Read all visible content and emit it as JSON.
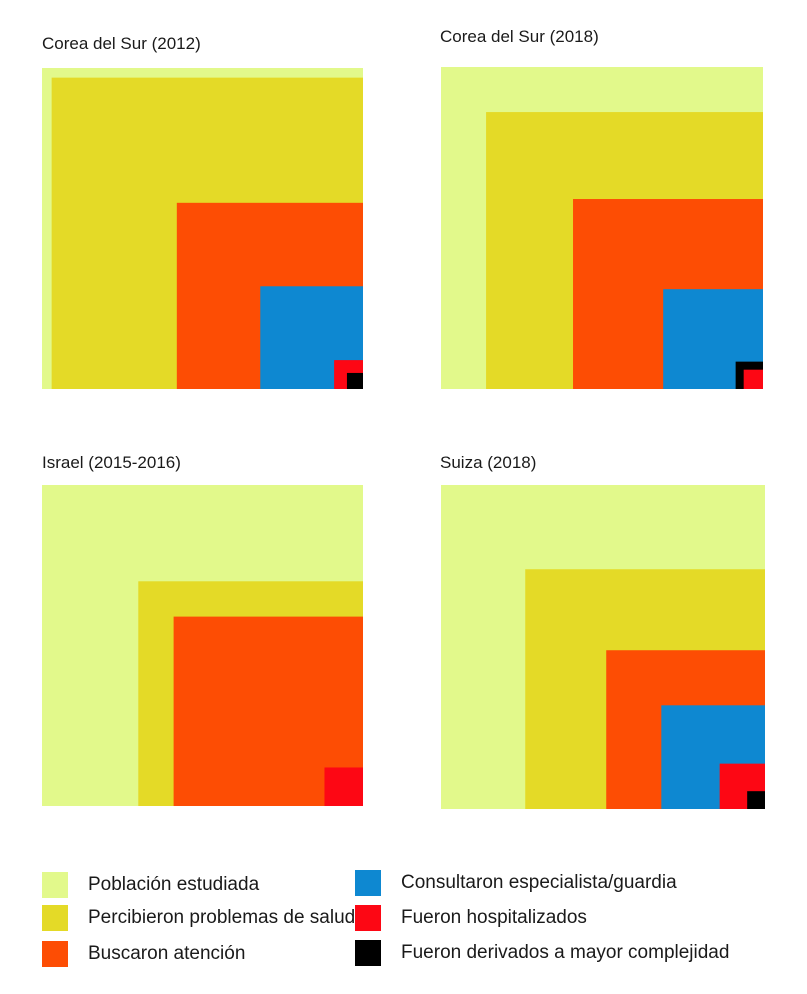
{
  "chart_data": [
    {
      "type": "nested-square",
      "title": "Corea del Sur (2012)",
      "values": [
        {
          "category": "Población estudiada",
          "side_fraction": 1.0
        },
        {
          "category": "Percibieron problemas de salud",
          "side_fraction": 0.97
        },
        {
          "category": "Buscaron atención",
          "side_fraction": 0.58
        },
        {
          "category": "Consultaron especialista/guardia",
          "side_fraction": 0.32
        },
        {
          "category": "Fueron hospitalizados",
          "side_fraction": 0.09
        },
        {
          "category": "Fueron derivados a mayor complejidad",
          "side_fraction": 0.05
        }
      ]
    },
    {
      "type": "nested-square",
      "title": "Corea del Sur (2018)",
      "values": [
        {
          "category": "Población estudiada",
          "side_fraction": 1.0
        },
        {
          "category": "Percibieron problemas de salud",
          "side_fraction": 0.86
        },
        {
          "category": "Buscaron atención",
          "side_fraction": 0.59
        },
        {
          "category": "Consultaron especialista/guardia",
          "side_fraction": 0.31
        },
        {
          "category": "Fueron derivados a mayor complejidad",
          "side_fraction": 0.085
        },
        {
          "category": "Fueron hospitalizados",
          "side_fraction": 0.06
        }
      ]
    },
    {
      "type": "nested-square",
      "title": "Israel (2015-2016)",
      "values": [
        {
          "category": "Población estudiada",
          "side_fraction": 1.0
        },
        {
          "category": "Percibieron problemas de salud",
          "side_fraction": 0.7
        },
        {
          "category": "Buscaron atención",
          "side_fraction": 0.59
        },
        {
          "category": "Fueron hospitalizados",
          "side_fraction": 0.12
        }
      ]
    },
    {
      "type": "nested-square",
      "title": "Suiza (2018)",
      "values": [
        {
          "category": "Población estudiada",
          "side_fraction": 1.0
        },
        {
          "category": "Percibieron problemas de salud",
          "side_fraction": 0.74
        },
        {
          "category": "Buscaron atención",
          "side_fraction": 0.49
        },
        {
          "category": "Consultaron especialista/guardia",
          "side_fraction": 0.32
        },
        {
          "category": "Fueron hospitalizados",
          "side_fraction": 0.14
        },
        {
          "category": "Fueron derivados a mayor complejidad",
          "side_fraction": 0.055
        }
      ]
    }
  ],
  "legend": [
    {
      "key": "poblacion",
      "label": "Población estudiada",
      "color": "#e2f98b"
    },
    {
      "key": "percibieron",
      "label": "Percibieron problemas de salud",
      "color": "#e4da27"
    },
    {
      "key": "buscaron",
      "label": "Buscaron atención",
      "color": "#fd4d04"
    },
    {
      "key": "consultaron",
      "label": "Consultaron especialista/guardia",
      "color": "#0e88d1"
    },
    {
      "key": "hospitalizados",
      "label": "Fueron hospitalizados",
      "color": "#fd0714"
    },
    {
      "key": "derivados",
      "label": "Fueron derivados a mayor complejidad",
      "color": "#000000"
    }
  ]
}
